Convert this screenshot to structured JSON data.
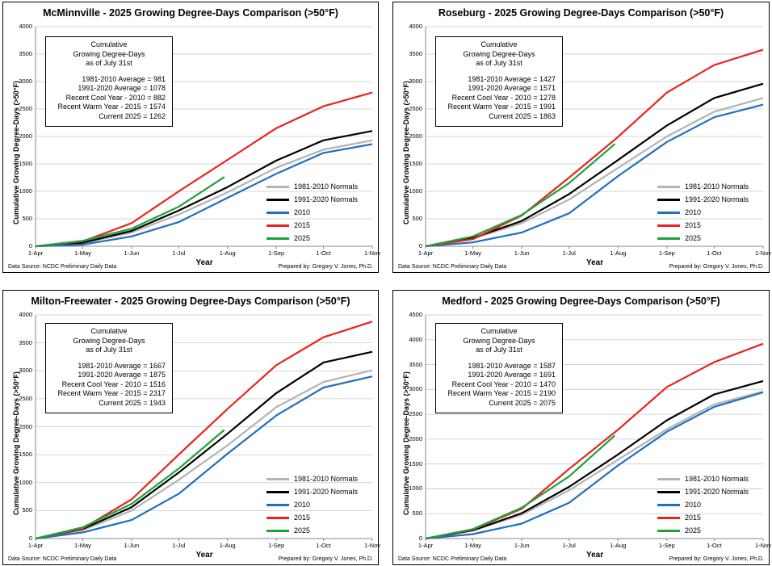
{
  "labels": {
    "source": "Data Source: NCDC Preliminary Daily Data",
    "prepared": "Prepared by: Gregory V. Jones, Ph.D.",
    "xlabel": "Year",
    "ylabel": "Cumulative Growing Degree-Days (>50°F)",
    "annot_header": [
      "Cumulative",
      "Growing Degree-Days",
      "as of July 31st"
    ]
  },
  "colors": {
    "1981-2010 Normals": "#b3b3b3",
    "1991-2020 Normals": "#000000",
    "2010": "#1f6fbf",
    "2015": "#e8231f",
    "2025": "#1aa33a"
  },
  "chart_data": [
    {
      "type": "line",
      "title": "McMinnville - 2025 Growing Degree-Days Comparison (>50°F)",
      "xlabel": "Year",
      "ylabel": "Cumulative Growing Degree-Days (>50°F)",
      "x_ticks": [
        "1-Apr",
        "1-May",
        "1-Jun",
        "1-Jul",
        "1-Aug",
        "1-Sep",
        "1-Oct",
        "1-Nov"
      ],
      "ylim": [
        0,
        4000
      ],
      "y_ticks": [
        0,
        500,
        1000,
        1500,
        2000,
        2500,
        3000,
        3500,
        4000
      ],
      "annotation": [
        "1981-2010 Average = 981",
        "1991-2020 Average = 1078",
        "Recent Cool Year - 2010 = 882",
        "Recent Warm Year - 2015 = 1574",
        "Current 2025 = 1262"
      ],
      "legend_labels": [
        "1981-2010 Normals",
        "1991-2020 Normals",
        "2010",
        "2015",
        "2025"
      ],
      "series": [
        {
          "name": "1981-2010 Normals",
          "x": [
            0,
            30,
            61,
            91,
            122,
            153,
            183,
            214
          ],
          "values": [
            0,
            55,
            250,
            580,
            981,
            1430,
            1760,
            1930
          ]
        },
        {
          "name": "1991-2020 Normals",
          "x": [
            0,
            30,
            61,
            91,
            122,
            153,
            183,
            214
          ],
          "values": [
            0,
            65,
            280,
            650,
            1078,
            1560,
            1930,
            2100
          ]
        },
        {
          "name": "2010",
          "x": [
            0,
            30,
            61,
            91,
            122,
            153,
            183,
            214
          ],
          "values": [
            0,
            30,
            180,
            440,
            882,
            1320,
            1700,
            1860
          ]
        },
        {
          "name": "2015",
          "x": [
            0,
            30,
            61,
            91,
            122,
            153,
            183,
            214
          ],
          "values": [
            0,
            90,
            420,
            1000,
            1574,
            2150,
            2550,
            2800
          ]
        },
        {
          "name": "2025",
          "x": [
            0,
            30,
            61,
            91,
            120
          ],
          "values": [
            0,
            100,
            320,
            720,
            1262
          ]
        }
      ]
    },
    {
      "type": "line",
      "title": "Roseburg - 2025 Growing Degree-Days Comparison (>50°F)",
      "xlabel": "Year",
      "ylabel": "Cumulative Growing Degree-Days (>50°F)",
      "x_ticks": [
        "1-Apr",
        "1-May",
        "1-Jun",
        "1-Jul",
        "1-Aug",
        "1-Sep",
        "1-Oct",
        "1-Nov"
      ],
      "ylim": [
        0,
        4000
      ],
      "y_ticks": [
        0,
        500,
        1000,
        1500,
        2000,
        2500,
        3000,
        3500,
        4000
      ],
      "annotation": [
        "1981-2010 Average = 1427",
        "1991-2020 Average = 1571",
        "Recent Cool Year - 2010 = 1278",
        "Recent Warm Year - 2015 = 1991",
        "Current 2025 = 1863"
      ],
      "legend_labels": [
        "1981-2010 Normals",
        "1991-2020 Normals",
        "2010",
        "2015",
        "2025"
      ],
      "series": [
        {
          "name": "1981-2010 Normals",
          "x": [
            0,
            30,
            61,
            91,
            122,
            153,
            183,
            214
          ],
          "values": [
            0,
            140,
            420,
            850,
            1427,
            2000,
            2450,
            2700
          ]
        },
        {
          "name": "1991-2020 Normals",
          "x": [
            0,
            30,
            61,
            91,
            122,
            153,
            183,
            214
          ],
          "values": [
            0,
            150,
            460,
            950,
            1571,
            2200,
            2700,
            2960
          ]
        },
        {
          "name": "2010",
          "x": [
            0,
            30,
            61,
            91,
            122,
            153,
            183,
            214
          ],
          "values": [
            0,
            70,
            250,
            600,
            1278,
            1900,
            2350,
            2580
          ]
        },
        {
          "name": "2015",
          "x": [
            0,
            30,
            61,
            91,
            122,
            153,
            183,
            214
          ],
          "values": [
            0,
            130,
            560,
            1250,
            1991,
            2800,
            3300,
            3580
          ]
        },
        {
          "name": "2025",
          "x": [
            0,
            30,
            61,
            91,
            120
          ],
          "values": [
            0,
            180,
            570,
            1150,
            1863
          ]
        }
      ]
    },
    {
      "type": "line",
      "title": "Milton-Freewater - 2025 Growing Degree-Days Comparison (>50°F)",
      "xlabel": "Year",
      "ylabel": "Cumulative Growing Degree-Days (>50°F)",
      "x_ticks": [
        "1-Apr",
        "1-May",
        "1-Jun",
        "1-Jul",
        "1-Aug",
        "1-Sep",
        "1-Oct",
        "1-Nov"
      ],
      "ylim": [
        0,
        4000
      ],
      "y_ticks": [
        0,
        500,
        1000,
        1500,
        2000,
        2500,
        3000,
        3500,
        4000
      ],
      "annotation": [
        "1981-2010 Average = 1667",
        "1991-2020 Average = 1875",
        "Recent Cool Year - 2010 = 1516",
        "Recent Warm Year - 2015 = 2317",
        "Current 2025 = 1943"
      ],
      "legend_labels": [
        "1981-2010 Normals",
        "1991-2020 Normals",
        "2010",
        "2015",
        "2025"
      ],
      "series": [
        {
          "name": "1981-2010 Normals",
          "x": [
            0,
            30,
            61,
            91,
            122,
            153,
            183,
            214
          ],
          "values": [
            0,
            150,
            500,
            1050,
            1667,
            2350,
            2800,
            3010
          ]
        },
        {
          "name": "1991-2020 Normals",
          "x": [
            0,
            30,
            61,
            91,
            122,
            153,
            183,
            214
          ],
          "values": [
            0,
            170,
            560,
            1180,
            1875,
            2600,
            3150,
            3340
          ]
        },
        {
          "name": "2010",
          "x": [
            0,
            30,
            61,
            91,
            122,
            153,
            183,
            214
          ],
          "values": [
            0,
            110,
            330,
            800,
            1516,
            2200,
            2700,
            2900
          ]
        },
        {
          "name": "2015",
          "x": [
            0,
            30,
            61,
            91,
            122,
            153,
            183,
            214
          ],
          "values": [
            0,
            180,
            700,
            1500,
            2317,
            3100,
            3600,
            3880
          ]
        },
        {
          "name": "2025",
          "x": [
            0,
            30,
            61,
            91,
            120
          ],
          "values": [
            0,
            200,
            620,
            1250,
            1943
          ]
        }
      ]
    },
    {
      "type": "line",
      "title": "Medford - 2025 Growing Degree-Days Comparison (>50°F)",
      "xlabel": "Year",
      "ylabel": "Cumulative Growing Degree-Days (>50°F)",
      "x_ticks": [
        "1-Apr",
        "1-May",
        "1-Jun",
        "1-Jul",
        "1-Aug",
        "1-Sep",
        "1-Oct",
        "1-Nov"
      ],
      "ylim": [
        0,
        4500
      ],
      "y_ticks": [
        0,
        500,
        1000,
        1500,
        2000,
        2500,
        3000,
        3500,
        4000,
        4500
      ],
      "annotation": [
        "1981-2010 Average = 1587",
        "1991-2020 Average = 1691",
        "Recent Cool Year - 2010 = 1470",
        "Recent Warm Year - 2015 = 2190",
        "Current 2025 = 2075"
      ],
      "legend_labels": [
        "1981-2010 Normals",
        "1991-2020 Normals",
        "2010",
        "2015",
        "2025"
      ],
      "series": [
        {
          "name": "1981-2010 Normals",
          "x": [
            0,
            30,
            61,
            91,
            122,
            153,
            183,
            214
          ],
          "values": [
            0,
            160,
            480,
            970,
            1587,
            2200,
            2700,
            2960
          ]
        },
        {
          "name": "1991-2020 Normals",
          "x": [
            0,
            30,
            61,
            91,
            122,
            153,
            183,
            214
          ],
          "values": [
            0,
            165,
            510,
            1040,
            1691,
            2380,
            2900,
            3170
          ]
        },
        {
          "name": "2010",
          "x": [
            0,
            30,
            61,
            91,
            122,
            153,
            183,
            214
          ],
          "values": [
            0,
            90,
            300,
            720,
            1470,
            2150,
            2650,
            2940
          ]
        },
        {
          "name": "2015",
          "x": [
            0,
            30,
            61,
            91,
            122,
            153,
            183,
            214
          ],
          "values": [
            0,
            180,
            600,
            1400,
            2190,
            3050,
            3550,
            3920
          ]
        },
        {
          "name": "2025",
          "x": [
            0,
            30,
            61,
            91,
            120
          ],
          "values": [
            0,
            190,
            620,
            1250,
            2075
          ]
        }
      ]
    }
  ]
}
